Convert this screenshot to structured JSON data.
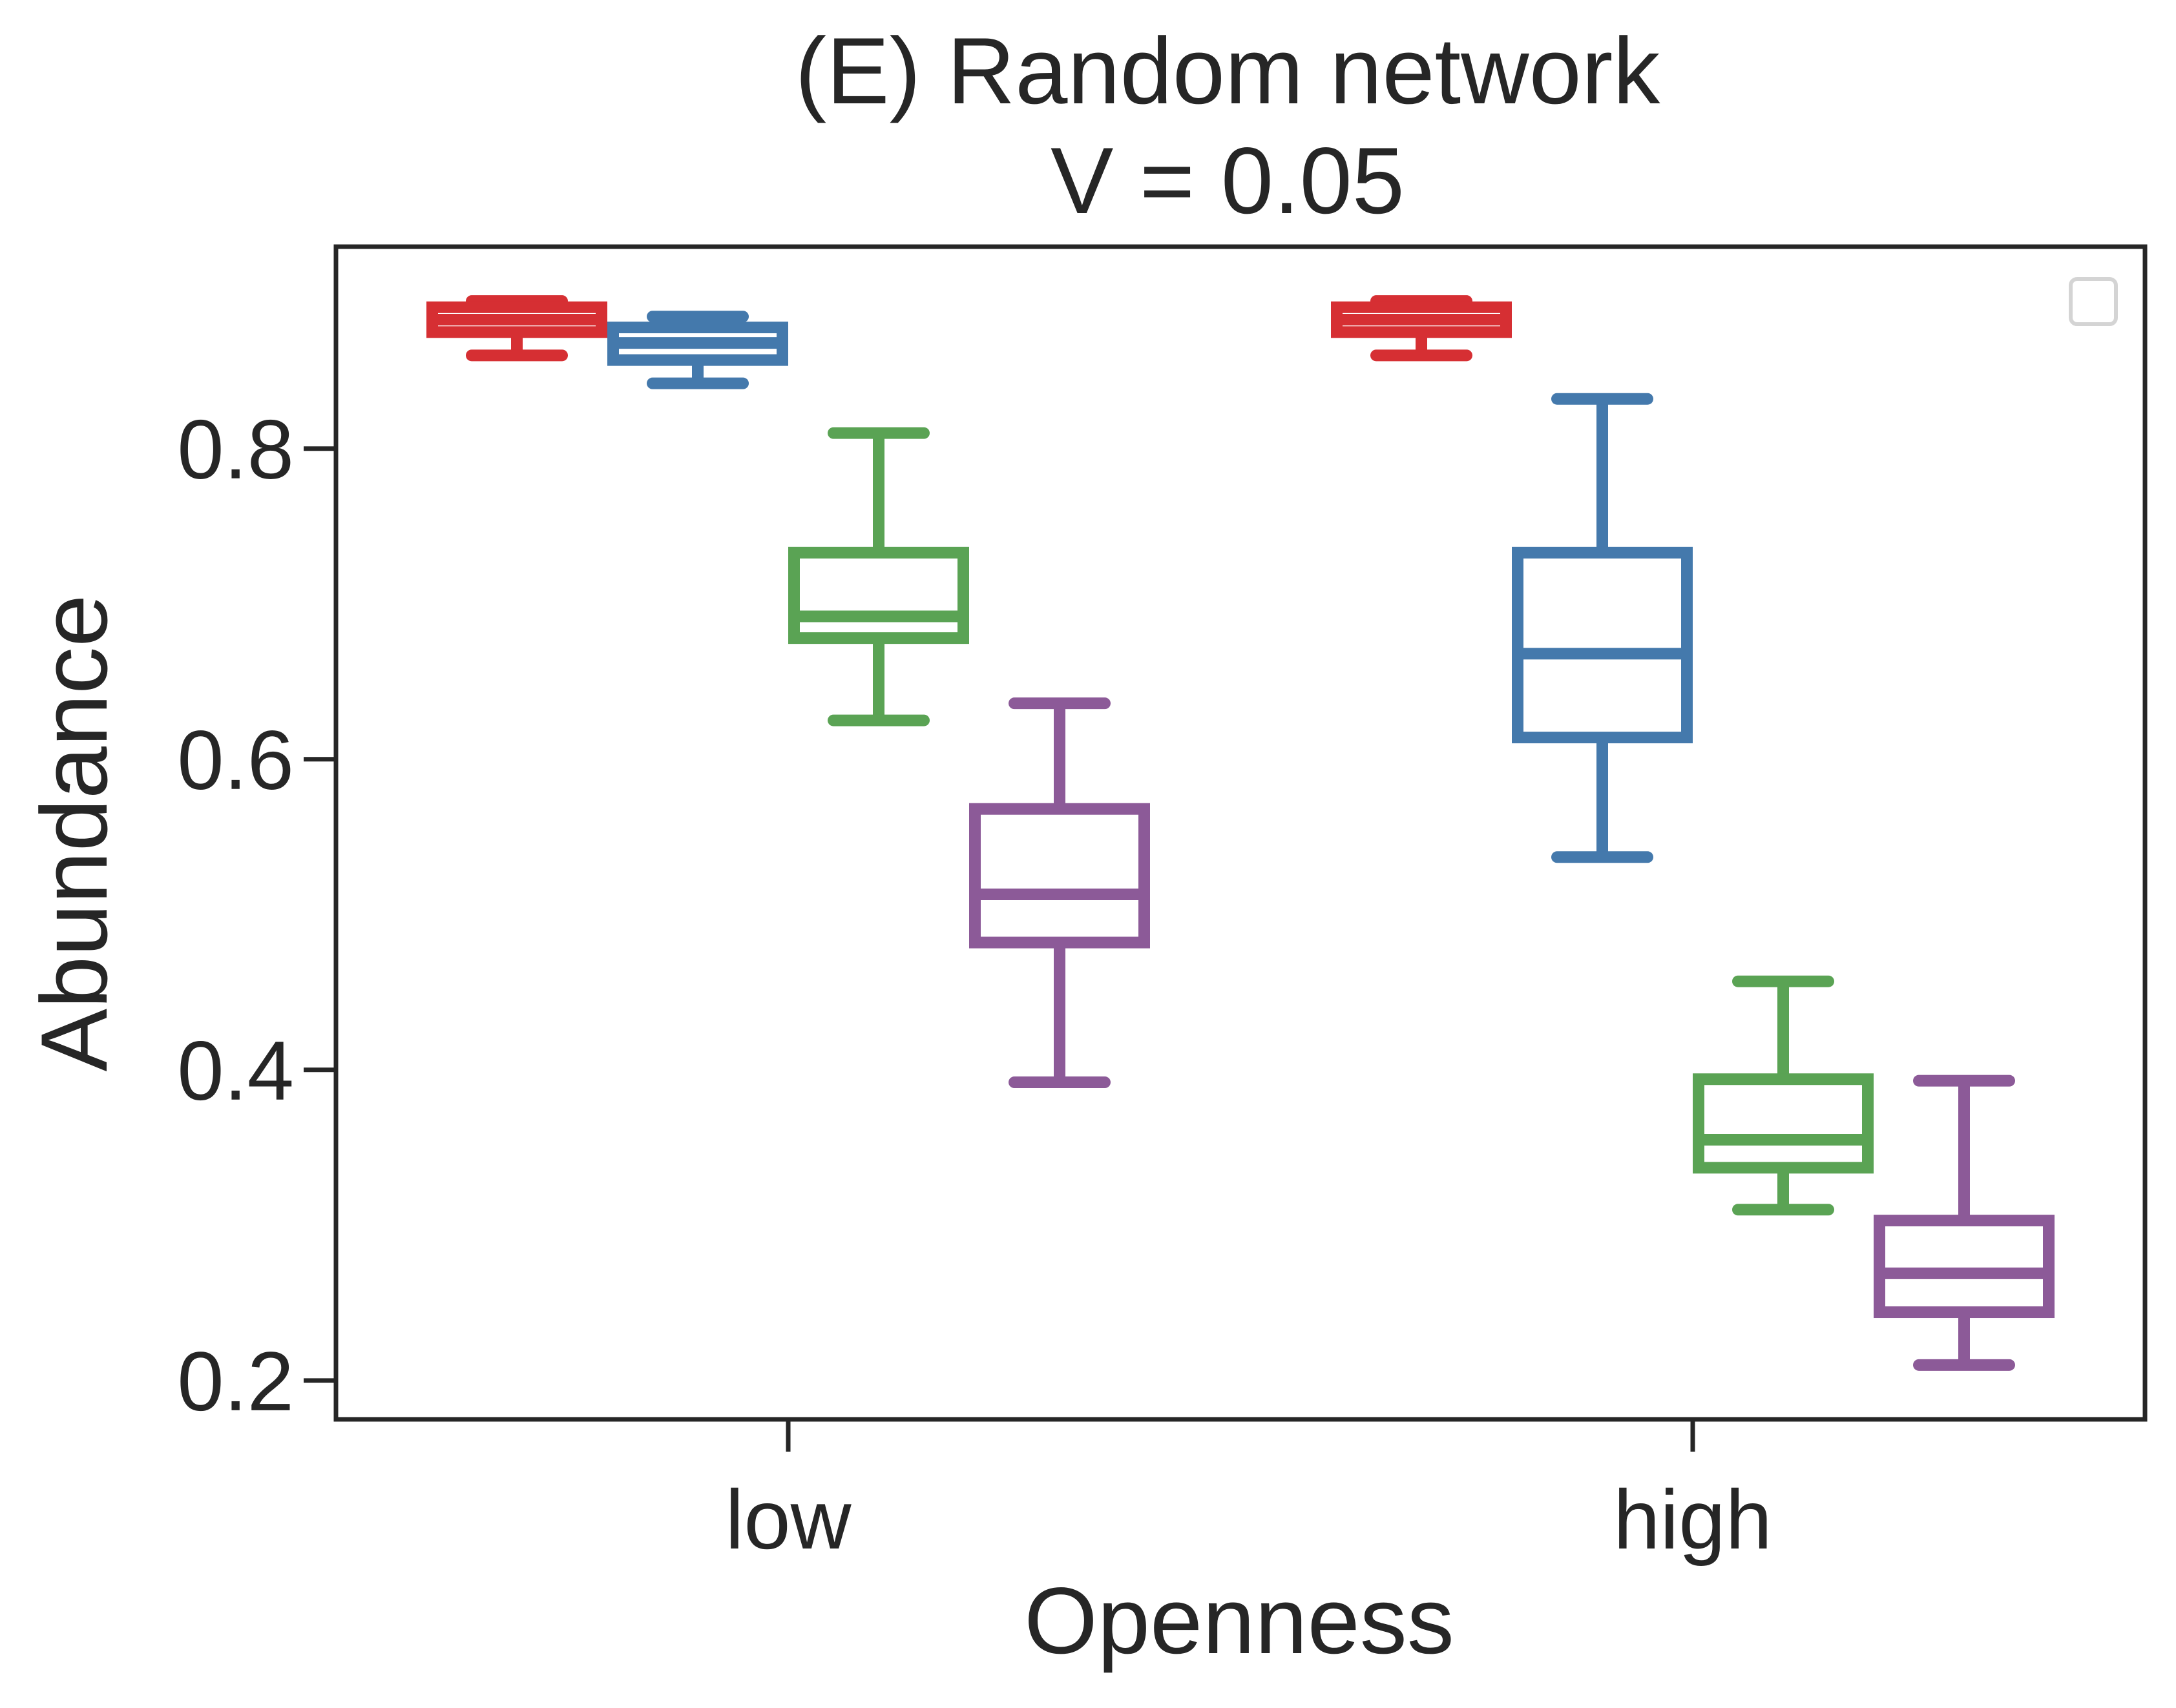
{
  "chart_data": {
    "type": "box",
    "title": "(E) Random network",
    "subtitle": "V = 0.05",
    "xlabel": "Openness",
    "ylabel": "Abundance",
    "categories": [
      "low",
      "high"
    ],
    "yticks": [
      0.2,
      0.4,
      0.6,
      0.8
    ],
    "yticklabels": [
      "0.2",
      "0.4",
      "0.6",
      "0.8"
    ],
    "ylim": [
      0.175,
      0.93
    ],
    "grid": false,
    "legend": {
      "placement": "upper-right",
      "entries": []
    },
    "series": [
      {
        "color": "#d62f33",
        "boxes": [
          {
            "category": "low",
            "whislo": 0.86,
            "q1": 0.875,
            "med": 0.883,
            "q3": 0.891,
            "whishi": 0.895
          },
          {
            "category": "high",
            "whislo": 0.86,
            "q1": 0.875,
            "med": 0.883,
            "q3": 0.891,
            "whishi": 0.895
          }
        ]
      },
      {
        "color": "#4479ac",
        "boxes": [
          {
            "category": "low",
            "whislo": 0.842,
            "q1": 0.857,
            "med": 0.868,
            "q3": 0.878,
            "whishi": 0.885
          },
          {
            "category": "high",
            "whislo": 0.537,
            "q1": 0.614,
            "med": 0.668,
            "q3": 0.733,
            "whishi": 0.832
          }
        ]
      },
      {
        "color": "#5aa354",
        "boxes": [
          {
            "category": "low",
            "whislo": 0.625,
            "q1": 0.678,
            "med": 0.692,
            "q3": 0.733,
            "whishi": 0.81
          },
          {
            "category": "high",
            "whislo": 0.31,
            "q1": 0.337,
            "med": 0.355,
            "q3": 0.394,
            "whishi": 0.457
          }
        ]
      },
      {
        "color": "#8c5a98",
        "boxes": [
          {
            "category": "low",
            "whislo": 0.392,
            "q1": 0.482,
            "med": 0.513,
            "q3": 0.568,
            "whishi": 0.636
          },
          {
            "category": "high",
            "whislo": 0.21,
            "q1": 0.244,
            "med": 0.269,
            "q3": 0.303,
            "whishi": 0.393
          }
        ]
      }
    ]
  }
}
